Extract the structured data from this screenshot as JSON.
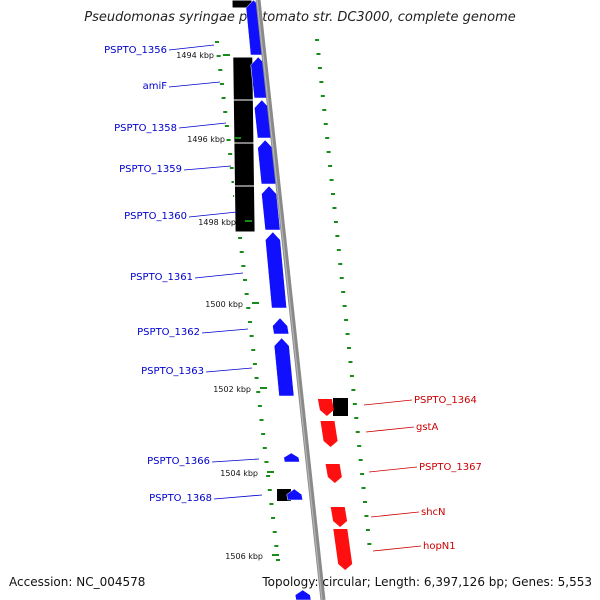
{
  "title": "Pseudomonas syringae pv. tomato str. DC3000, complete genome",
  "accession_label": "Accession: NC_004578",
  "topology_label": "Topology: circular; Length: 6,397,126 bp; Genes: 5,553",
  "colors": {
    "forward_gene": "#1010ff",
    "reverse_gene": "#ff1010",
    "pseudo_gene": "#b8b8b8",
    "backbone": "#8a8a8a",
    "tick": "#1a8a1a",
    "forward_label": "#0000cc",
    "reverse_label": "#cc0000"
  },
  "chart_data": {
    "type": "genome-map",
    "forward_genes": [
      "PSPTO_1356",
      "amiF",
      "PSPTO_1358",
      "PSPTO_1359",
      "PSPTO_1360",
      "PSPTO_1361",
      "PSPTO_1362",
      "PSPTO_1363",
      "PSPTO_1366",
      "PSPTO_1368"
    ],
    "reverse_genes": [
      "PSPTO_1364",
      "gstA",
      "PSPTO_1367",
      "shcN",
      "hopN1"
    ],
    "kbp_ticks": [
      "1494 kbp",
      "1496 kbp",
      "1498 kbp",
      "1500 kbp",
      "1502 kbp",
      "1504 kbp",
      "1506 kbp"
    ]
  }
}
